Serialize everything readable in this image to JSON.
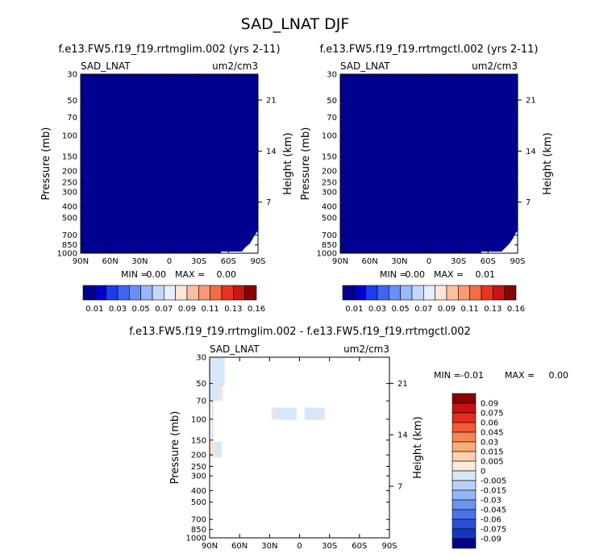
{
  "main_title": "SAD_LNAT DJF",
  "chart_data": [
    {
      "type": "heatmap",
      "title": "f.e13.FW5.f19_f19.rrtmglim.002 (yrs 2-11)",
      "variable": "SAD_LNAT",
      "units": "um2/cm3",
      "xlabel": "",
      "ylabel": "Pressure (mb)",
      "ylabel_right": "Height (km)",
      "x_ticks": [
        "90N",
        "60N",
        "30N",
        "0",
        "30S",
        "60S",
        "90S"
      ],
      "y_ticks": [
        "30",
        "50",
        "70",
        "100",
        "150",
        "200",
        "250",
        "300",
        "400",
        "500",
        "700",
        "850",
        "1000"
      ],
      "y_ticks_right": [
        "21",
        "14",
        "7"
      ],
      "min_label": "MIN =",
      "min_value": "0.00",
      "max_label": "MAX =",
      "max_value": "0.00",
      "field_value": 0.0,
      "colorbar_labels": [
        "0.01",
        "0.03",
        "0.05",
        "0.07",
        "0.09",
        "0.11",
        "0.13",
        "0.16"
      ]
    },
    {
      "type": "heatmap",
      "title": "f.e13.FW5.f19_f19.rrtmgctl.002 (yrs 2-11)",
      "variable": "SAD_LNAT",
      "units": "um2/cm3",
      "xlabel": "",
      "ylabel": "Pressure (mb)",
      "ylabel_right": "Height (km)",
      "x_ticks": [
        "90N",
        "60N",
        "30N",
        "0",
        "30S",
        "60S",
        "90S"
      ],
      "y_ticks": [
        "30",
        "50",
        "70",
        "100",
        "150",
        "200",
        "250",
        "300",
        "400",
        "500",
        "700",
        "850",
        "1000"
      ],
      "y_ticks_right": [
        "21",
        "14",
        "7"
      ],
      "min_label": "MIN =",
      "min_value": "0.00",
      "max_label": "MAX =",
      "max_value": "0.01",
      "field_value": 0.0,
      "colorbar_labels": [
        "0.01",
        "0.03",
        "0.05",
        "0.07",
        "0.09",
        "0.11",
        "0.13",
        "0.16"
      ]
    },
    {
      "type": "heatmap",
      "title": "f.e13.FW5.f19_f19.rrtmglim.002 - f.e13.FW5.f19_f19.rrtmgctl.002",
      "variable": "SAD_LNAT",
      "units": "um2/cm3",
      "xlabel": "",
      "ylabel": "Pressure (mb)",
      "ylabel_right": "Height (km)",
      "x_ticks": [
        "90N",
        "60N",
        "30N",
        "0",
        "30S",
        "60S",
        "90S"
      ],
      "y_ticks": [
        "30",
        "50",
        "70",
        "100",
        "150",
        "200",
        "250",
        "300",
        "400",
        "500",
        "700",
        "850",
        "1000"
      ],
      "y_ticks_right": [
        "21",
        "14",
        "7"
      ],
      "min_label": "MIN =",
      "min_value": "-0.01",
      "max_label": "MAX =",
      "max_value": "0.00",
      "colorbar_labels": [
        "0.09",
        "0.075",
        "0.06",
        "0.045",
        "0.03",
        "0.015",
        "0.005",
        "0",
        "-0.005",
        "-0.015",
        "-0.03",
        "-0.045",
        "-0.06",
        "-0.075",
        "-0.09"
      ],
      "anomaly_regions": [
        {
          "lat": [
            90,
            75
          ],
          "p": [
            30,
            53
          ],
          "value": -0.005
        },
        {
          "lat": [
            90,
            80
          ],
          "p": [
            53,
            70
          ],
          "value": -0.005
        },
        {
          "lat": [
            80,
            77
          ],
          "p": [
            53,
            70
          ],
          "value": 0.005
        },
        {
          "lat": [
            88,
            86
          ],
          "p": [
            70,
            155
          ],
          "value": -0.005
        },
        {
          "lat": [
            90,
            85
          ],
          "p": [
            155,
            210
          ],
          "value": 0.005
        },
        {
          "lat": [
            85,
            78
          ],
          "p": [
            155,
            210
          ],
          "value": -0.005
        },
        {
          "lat": [
            28,
            26
          ],
          "p": [
            80,
            101
          ],
          "value": 0.005
        },
        {
          "lat": [
            26,
            3
          ],
          "p": [
            80,
            101
          ],
          "value": -0.005
        },
        {
          "lat": [
            -5,
            -25
          ],
          "p": [
            80,
            101
          ],
          "value": -0.005
        }
      ]
    }
  ],
  "colors": {
    "deep_blue": "#000090",
    "neg_small": "#d6e7f9",
    "pos_small": "#fde2d2"
  }
}
